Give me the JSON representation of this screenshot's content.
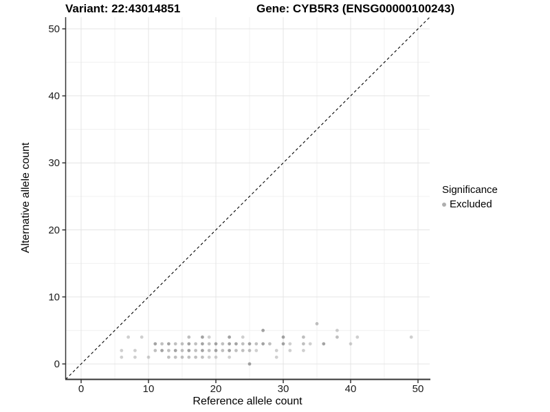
{
  "titles": {
    "variant": "Variant: 22:43014851",
    "gene": "Gene: CYB5R3 (ENSG00000100243)"
  },
  "colors": {
    "point_base": "#808080",
    "legend_dot": "#afafaf",
    "grid_major": "#e4e4e4",
    "grid_minor": "#f0f0f0",
    "axis_line": "#333333",
    "tick_label": "#1a1a1a",
    "identity_line": "#000000"
  },
  "chart_data": {
    "type": "scatter",
    "title": "Variant: 22:43014851   Gene: CYB5R3 (ENSG00000100243)",
    "xlabel": "Reference allele count",
    "ylabel": "Alternative allele count",
    "xticks": [
      0,
      10,
      20,
      30,
      40,
      50
    ],
    "yticks": [
      0,
      10,
      20,
      30,
      40,
      50
    ],
    "xticks_minor": [
      5,
      15,
      25,
      35,
      45
    ],
    "yticks_minor": [
      5,
      15,
      25,
      35,
      45
    ],
    "xlim": [
      -2.3,
      51.7
    ],
    "ylim": [
      -2.3,
      51.7
    ],
    "grid": "major+minor",
    "legend": {
      "title": "Significance",
      "position": "right",
      "items": [
        {
          "label": "Excluded",
          "color": "#afafaf"
        }
      ]
    },
    "identity_line": {
      "equation": "y = x",
      "style": "dashed",
      "color": "#000000"
    },
    "series": [
      {
        "name": "Excluded",
        "color": "#808080",
        "points_format": "[x, y, alpha]",
        "points": [
          [
            35,
            6,
            0.5
          ],
          [
            27,
            5,
            0.72
          ],
          [
            38,
            5,
            0.38
          ],
          [
            7,
            4,
            0.38
          ],
          [
            9,
            4,
            0.38
          ],
          [
            16,
            4,
            0.5
          ],
          [
            18,
            4,
            0.72
          ],
          [
            19,
            4,
            0.38
          ],
          [
            22,
            4,
            0.72
          ],
          [
            24,
            4,
            0.38
          ],
          [
            30,
            4,
            0.72
          ],
          [
            33,
            4,
            0.5
          ],
          [
            38,
            4,
            0.5
          ],
          [
            41,
            4,
            0.38
          ],
          [
            49,
            4,
            0.38
          ],
          [
            11,
            3,
            0.72
          ],
          [
            12,
            3,
            0.5
          ],
          [
            13,
            3,
            0.72
          ],
          [
            14,
            3,
            0.5
          ],
          [
            15,
            3,
            0.5
          ],
          [
            16,
            3,
            0.72
          ],
          [
            17,
            3,
            0.5
          ],
          [
            18,
            3,
            0.72
          ],
          [
            19,
            3,
            0.5
          ],
          [
            20,
            3,
            0.72
          ],
          [
            21,
            3,
            0.5
          ],
          [
            22,
            3,
            0.72
          ],
          [
            23,
            3,
            0.72
          ],
          [
            24,
            3,
            0.5
          ],
          [
            25,
            3,
            0.72
          ],
          [
            26,
            3,
            0.5
          ],
          [
            27,
            3,
            0.72
          ],
          [
            28,
            3,
            0.5
          ],
          [
            30,
            3,
            0.72
          ],
          [
            31,
            3,
            0.38
          ],
          [
            33,
            3,
            0.5
          ],
          [
            34,
            3,
            0.38
          ],
          [
            36,
            3,
            0.72
          ],
          [
            40,
            3,
            0.38
          ],
          [
            6,
            2,
            0.38
          ],
          [
            8,
            2,
            0.38
          ],
          [
            11,
            2,
            0.5
          ],
          [
            12,
            2,
            0.72
          ],
          [
            13,
            2,
            0.5
          ],
          [
            14,
            2,
            0.72
          ],
          [
            15,
            2,
            0.5
          ],
          [
            16,
            2,
            0.72
          ],
          [
            17,
            2,
            0.5
          ],
          [
            18,
            2,
            0.72
          ],
          [
            19,
            2,
            0.5
          ],
          [
            20,
            2,
            0.72
          ],
          [
            21,
            2,
            0.5
          ],
          [
            22,
            2,
            0.72
          ],
          [
            23,
            2,
            0.5
          ],
          [
            24,
            2,
            0.5
          ],
          [
            25,
            2,
            0.5
          ],
          [
            26,
            2,
            0.38
          ],
          [
            29,
            2,
            0.38
          ],
          [
            31,
            2,
            0.38
          ],
          [
            33,
            2,
            0.38
          ],
          [
            6,
            1,
            0.38
          ],
          [
            8,
            1,
            0.38
          ],
          [
            10,
            1,
            0.38
          ],
          [
            13,
            1,
            0.5
          ],
          [
            14,
            1,
            0.5
          ],
          [
            15,
            1,
            0.5
          ],
          [
            16,
            1,
            0.5
          ],
          [
            17,
            1,
            0.5
          ],
          [
            18,
            1,
            0.5
          ],
          [
            19,
            1,
            0.38
          ],
          [
            20,
            1,
            0.38
          ],
          [
            22,
            1,
            0.38
          ],
          [
            29,
            1,
            0.38
          ],
          [
            25,
            0,
            0.72
          ]
        ]
      }
    ]
  }
}
